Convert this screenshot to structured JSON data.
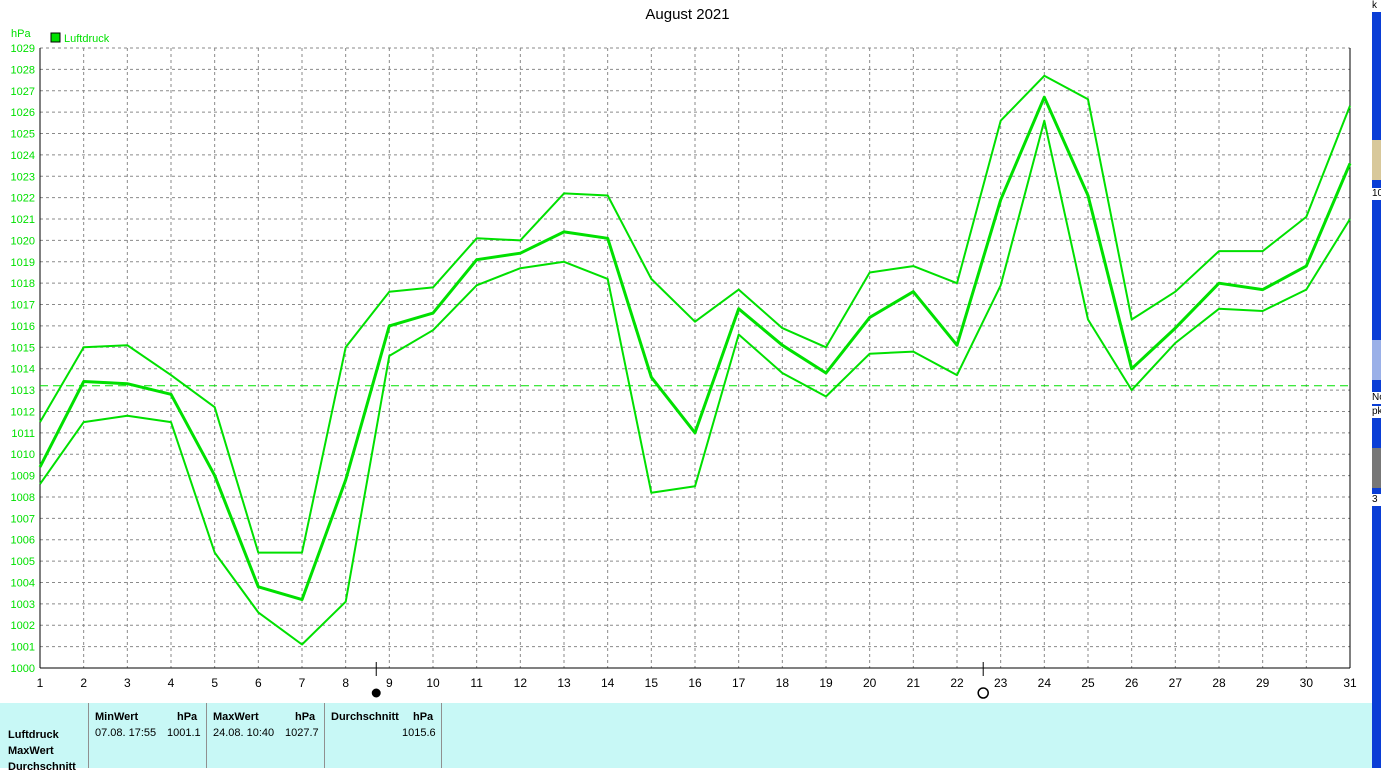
{
  "chart_data": {
    "type": "line",
    "title": "August 2021",
    "ylabel": "hPa",
    "ylim": [
      1000,
      1029
    ],
    "xlim": [
      1,
      31
    ],
    "grid": true,
    "legend": {
      "position": "top-left",
      "entries": [
        "Luftdruck"
      ]
    },
    "x": [
      1,
      2,
      3,
      4,
      5,
      6,
      7,
      8,
      9,
      10,
      11,
      12,
      13,
      14,
      15,
      16,
      17,
      18,
      19,
      20,
      21,
      22,
      23,
      24,
      25,
      26,
      27,
      28,
      29,
      30,
      31
    ],
    "series": [
      {
        "name": "Luftdruck",
        "role": "max",
        "color": "#00e000",
        "values": [
          1011.5,
          1015.0,
          1015.1,
          1013.7,
          1012.2,
          1005.4,
          1005.4,
          1015.0,
          1017.6,
          1017.8,
          1020.1,
          1020.0,
          1022.2,
          1022.1,
          1018.2,
          1016.2,
          1017.7,
          1015.9,
          1015.0,
          1018.5,
          1018.8,
          1018.0,
          1025.6,
          1027.7,
          1026.6,
          1016.3,
          1017.6,
          1019.5,
          1019.5,
          1021.1,
          1026.3
        ]
      },
      {
        "name": "Luftdruck",
        "role": "mean",
        "color": "#00e000",
        "values": [
          1009.4,
          1013.4,
          1013.3,
          1012.8,
          1009.0,
          1003.8,
          1003.2,
          1008.8,
          1016.0,
          1016.6,
          1019.1,
          1019.4,
          1020.4,
          1020.1,
          1013.6,
          1011.0,
          1016.8,
          1015.1,
          1013.8,
          1016.4,
          1017.6,
          1015.1,
          1021.9,
          1026.7,
          1022.1,
          1014.0,
          1015.9,
          1018.0,
          1017.7,
          1018.8,
          1023.6
        ]
      },
      {
        "name": "Luftdruck",
        "role": "min",
        "color": "#00e000",
        "values": [
          1008.6,
          1011.5,
          1011.8,
          1011.5,
          1005.4,
          1002.6,
          1001.1,
          1003.1,
          1014.6,
          1015.8,
          1017.9,
          1018.7,
          1019.0,
          1018.2,
          1008.2,
          1008.5,
          1015.6,
          1013.8,
          1012.7,
          1014.7,
          1014.8,
          1013.7,
          1017.9,
          1025.6,
          1016.3,
          1013.0,
          1015.2,
          1016.8,
          1016.7,
          1017.7,
          1021.0
        ]
      }
    ],
    "average_line": 1013.2,
    "moon_phases": [
      {
        "symbol": "new-moon",
        "day": 8.7
      },
      {
        "symbol": "full-moon",
        "day": 22.6
      }
    ]
  },
  "stats": {
    "row_labels": [
      "Luftdruck",
      "MaxWert",
      "Durchschnitt"
    ],
    "min": {
      "header": "MinWert",
      "unit": "hPa",
      "when": "07.08.  17:55",
      "value": "1001.1"
    },
    "max": {
      "header": "MaxWert",
      "unit": "hPa",
      "when": "24.08.  10:40",
      "value": "1027.7"
    },
    "avg": {
      "header": "Durchschnitt",
      "unit": "hPa",
      "value": "1015.6"
    }
  },
  "edge_fragments": [
    "k",
    "10",
    "Nc",
    "pk",
    "3"
  ]
}
